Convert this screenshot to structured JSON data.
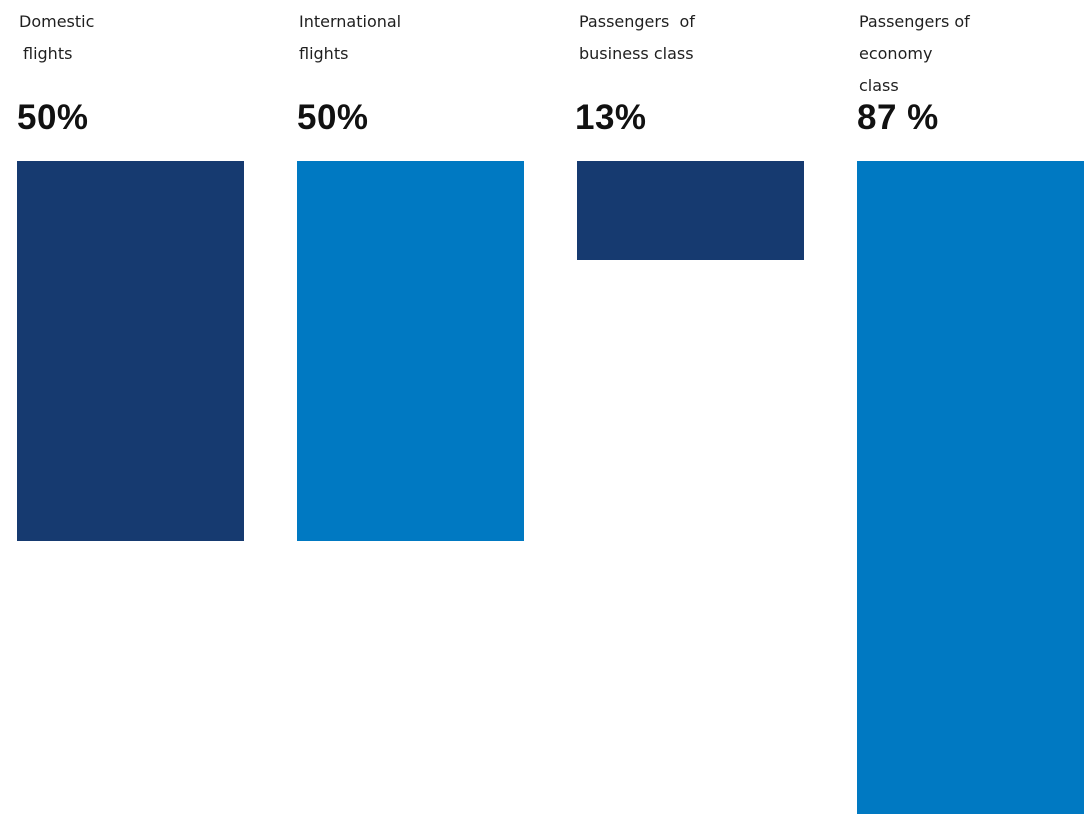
{
  "colors": {
    "dark_blue": "#163a70",
    "medium_blue": "#0079c2"
  },
  "chart_data": {
    "type": "bar",
    "orientation": "vertical-hanging",
    "categories": [
      [
        "Domestic",
        "flights"
      ],
      [
        "International",
        "flights"
      ],
      [
        "Passengers  of",
        "business class"
      ],
      [
        "Passengers of",
        "economy",
        "class"
      ]
    ],
    "value_labels": [
      "50%",
      "50%",
      "13%",
      "87 %"
    ],
    "values": [
      50,
      50,
      13,
      87
    ],
    "bar_colors": [
      "#163a70",
      "#0079c2",
      "#163a70",
      "#0079c2"
    ],
    "ylim": [
      0,
      100
    ],
    "grid": false
  }
}
